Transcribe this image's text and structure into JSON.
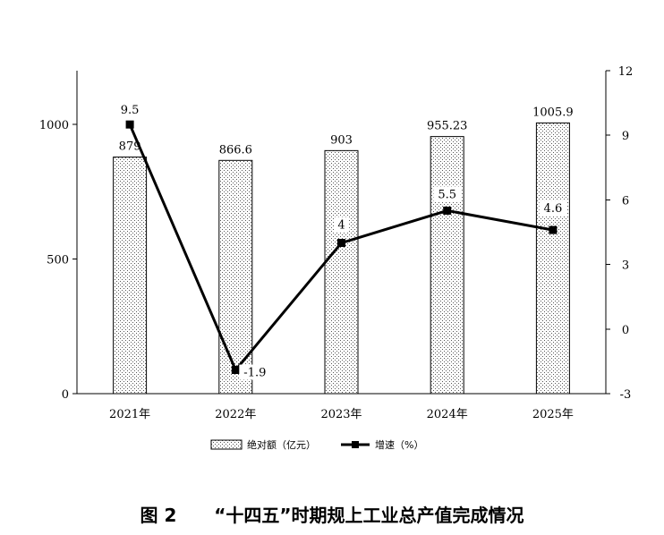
{
  "chart_data": {
    "type": "bar+line",
    "categories": [
      "2021年",
      "2022年",
      "2023年",
      "2024年",
      "2025年"
    ],
    "series": [
      {
        "name": "绝对额（亿元）",
        "type": "bar",
        "axis": "left",
        "values": [
          879,
          866.6,
          903,
          955.23,
          1005.9
        ],
        "labels": [
          "879",
          "866.6",
          "903",
          "955.23",
          "1005.9"
        ]
      },
      {
        "name": "增速（%）",
        "type": "line",
        "axis": "right",
        "values": [
          9.5,
          -1.9,
          4,
          5.5,
          4.6
        ],
        "labels": [
          "9.5",
          "-1.9",
          "4",
          "5.5",
          "4.6"
        ]
      }
    ],
    "y_left": {
      "min": 0,
      "max": 1200,
      "ticks": [
        0,
        500,
        1000
      ]
    },
    "y_right": {
      "min": -3,
      "max": 12,
      "ticks": [
        -3,
        0,
        3,
        6,
        9,
        12
      ]
    },
    "grid": false,
    "legend_position": "bottom"
  },
  "caption": {
    "figure_no": "图 2",
    "title": "“十四五”时期规上工业总产值完成情况"
  }
}
